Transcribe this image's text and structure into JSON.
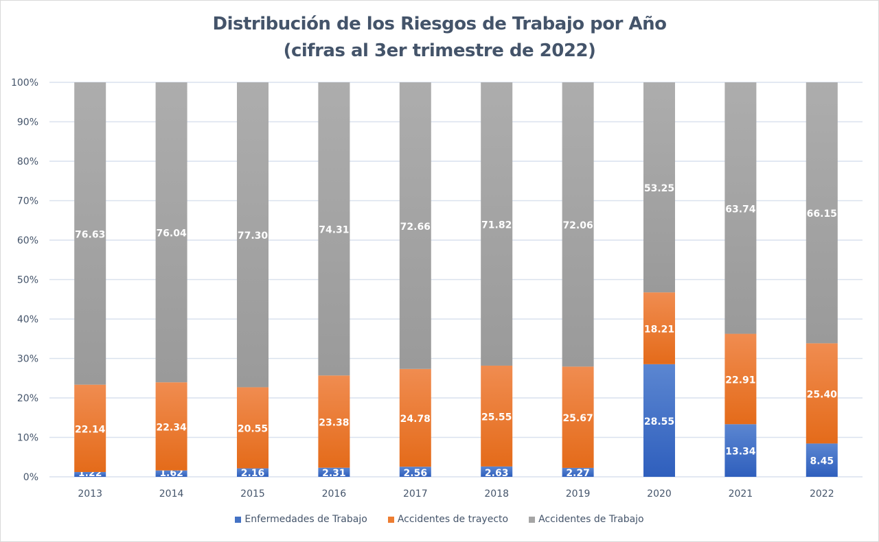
{
  "chart_data": {
    "type": "bar",
    "stacked": true,
    "percent_stacked": true,
    "title": "Distribución de los Riesgos de Trabajo por Año",
    "subtitle": "(cifras al 3er trimestre de 2022)",
    "xlabel": "",
    "ylabel": "",
    "ylim": [
      0,
      100
    ],
    "yticks": [
      "0%",
      "10%",
      "20%",
      "30%",
      "40%",
      "50%",
      "60%",
      "70%",
      "80%",
      "90%",
      "100%"
    ],
    "grid": true,
    "legend_position": "bottom",
    "categories": [
      "2013",
      "2014",
      "2015",
      "2016",
      "2017",
      "2018",
      "2019",
      "2020",
      "2021",
      "2022"
    ],
    "series": [
      {
        "name": "Enfermedades de Trabajo",
        "color": "#4472c4",
        "values": [
          1.22,
          1.62,
          2.16,
          2.31,
          2.56,
          2.63,
          2.27,
          28.55,
          13.34,
          8.45
        ],
        "labels": [
          "1.22",
          "1.62",
          "2.16",
          "2.31",
          "2.56",
          "2.63",
          "2.27",
          "28.55",
          "13.34",
          "8.45"
        ]
      },
      {
        "name": "Accidentes de trayecto",
        "color": "#ed7d31",
        "values": [
          22.14,
          22.34,
          20.55,
          23.38,
          24.78,
          25.55,
          25.67,
          18.21,
          22.91,
          25.4
        ],
        "labels": [
          "22.14",
          "22.34",
          "20.55",
          "23.38",
          "24.78",
          "25.55",
          "25.67",
          "18.21",
          "22.91",
          "25.40"
        ]
      },
      {
        "name": "Accidentes de Trabajo",
        "color": "#a5a5a5",
        "values": [
          76.63,
          76.04,
          77.3,
          74.31,
          72.66,
          71.82,
          72.06,
          53.25,
          63.74,
          66.15
        ],
        "labels": [
          "76.63",
          "76.04",
          "77.30",
          "74.31",
          "72.66",
          "71.82",
          "72.06",
          "53.25",
          "63.74",
          "66.15"
        ]
      }
    ]
  },
  "colors": {
    "title": "#44546a",
    "axis_text": "#44546a",
    "grid": "#d9e1ee",
    "label": "#ffffff"
  }
}
